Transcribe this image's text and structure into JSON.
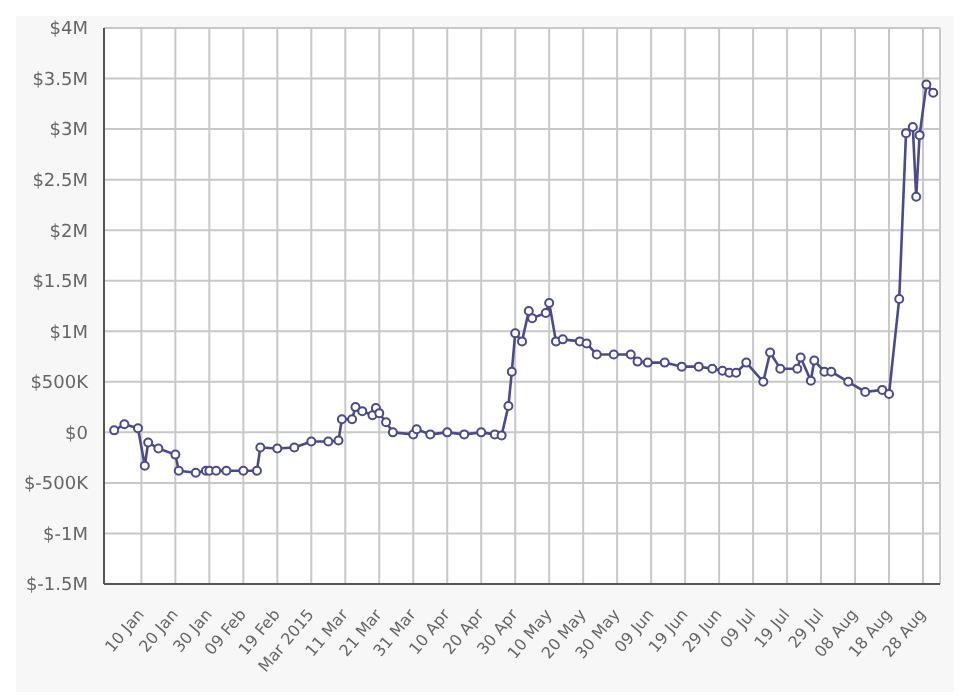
{
  "chart_data": {
    "type": "line",
    "x": [
      "2015-01-02",
      "2015-01-05",
      "2015-01-09",
      "2015-01-11",
      "2015-01-12",
      "2015-01-15",
      "2015-01-20",
      "2015-01-21",
      "2015-01-26",
      "2015-01-29",
      "2015-01-30",
      "2015-02-01",
      "2015-02-04",
      "2015-02-09",
      "2015-02-13",
      "2015-02-14",
      "2015-02-19",
      "2015-02-24",
      "2015-03-01",
      "2015-03-06",
      "2015-03-09",
      "2015-03-10",
      "2015-03-13",
      "2015-03-14",
      "2015-03-16",
      "2015-03-19",
      "2015-03-20",
      "2015-03-21",
      "2015-03-23",
      "2015-03-25",
      "2015-03-31",
      "2015-04-01",
      "2015-04-05",
      "2015-04-10",
      "2015-04-15",
      "2015-04-20",
      "2015-04-24",
      "2015-04-26",
      "2015-04-28",
      "2015-04-29",
      "2015-04-30",
      "2015-05-02",
      "2015-05-04",
      "2015-05-05",
      "2015-05-09",
      "2015-05-10",
      "2015-05-12",
      "2015-05-14",
      "2015-05-19",
      "2015-05-21",
      "2015-05-24",
      "2015-05-29",
      "2015-06-03",
      "2015-06-05",
      "2015-06-08",
      "2015-06-13",
      "2015-06-18",
      "2015-06-23",
      "2015-06-27",
      "2015-06-30",
      "2015-07-02",
      "2015-07-04",
      "2015-07-07",
      "2015-07-12",
      "2015-07-14",
      "2015-07-17",
      "2015-07-22",
      "2015-07-23",
      "2015-07-26",
      "2015-07-27",
      "2015-07-30",
      "2015-08-01",
      "2015-08-06",
      "2015-08-11",
      "2015-08-16",
      "2015-08-18",
      "2015-08-21",
      "2015-08-23",
      "2015-08-25",
      "2015-08-26",
      "2015-08-27",
      "2015-08-29",
      "2015-08-31"
    ],
    "series": [
      {
        "color": "#4a4a8c",
        "values": [
          20000,
          80000,
          40000,
          -330000,
          -100000,
          -160000,
          -220000,
          -380000,
          -400000,
          -380000,
          -380000,
          -380000,
          -380000,
          -380000,
          -380000,
          -150000,
          -160000,
          -150000,
          -90000,
          -90000,
          -80000,
          130000,
          130000,
          250000,
          210000,
          170000,
          240000,
          190000,
          100000,
          0,
          -20000,
          30000,
          -20000,
          0,
          -20000,
          0,
          -20000,
          -30000,
          260000,
          600000,
          980000,
          900000,
          1200000,
          1130000,
          1180000,
          1280000,
          900000,
          920000,
          900000,
          880000,
          770000,
          770000,
          770000,
          700000,
          690000,
          690000,
          650000,
          650000,
          630000,
          610000,
          590000,
          590000,
          690000,
          500000,
          790000,
          630000,
          630000,
          740000,
          510000,
          710000,
          600000,
          600000,
          500000,
          400000,
          420000,
          380000,
          1320000,
          2960000,
          3020000,
          2330000,
          2940000,
          3440000,
          3360000
        ]
      }
    ],
    "xlim": [
      "2014-12-30",
      "2015-09-02"
    ],
    "xticks": [
      {
        "value": "2015-01-10",
        "label": "10 Jan"
      },
      {
        "value": "2015-01-20",
        "label": "20 Jan"
      },
      {
        "value": "2015-01-30",
        "label": "30 Jan"
      },
      {
        "value": "2015-02-09",
        "label": "09 Feb"
      },
      {
        "value": "2015-02-19",
        "label": "19 Feb"
      },
      {
        "value": "2015-03-01",
        "label": "Mar 2015"
      },
      {
        "value": "2015-03-11",
        "label": "11 Mar"
      },
      {
        "value": "2015-03-21",
        "label": "21 Mar"
      },
      {
        "value": "2015-03-31",
        "label": "31 Mar"
      },
      {
        "value": "2015-04-10",
        "label": "10 Apr"
      },
      {
        "value": "2015-04-20",
        "label": "20 Apr"
      },
      {
        "value": "2015-04-30",
        "label": "30 Apr"
      },
      {
        "value": "2015-05-10",
        "label": "10 May"
      },
      {
        "value": "2015-05-20",
        "label": "20 May"
      },
      {
        "value": "2015-05-30",
        "label": "30 May"
      },
      {
        "value": "2015-06-09",
        "label": "09 Jun"
      },
      {
        "value": "2015-06-19",
        "label": "19 Jun"
      },
      {
        "value": "2015-06-29",
        "label": "29 Jun"
      },
      {
        "value": "2015-07-09",
        "label": "09 Jul"
      },
      {
        "value": "2015-07-19",
        "label": "19 Jul"
      },
      {
        "value": "2015-07-29",
        "label": "29 Jul"
      },
      {
        "value": "2015-08-08",
        "label": "08 Aug"
      },
      {
        "value": "2015-08-18",
        "label": "18 Aug"
      },
      {
        "value": "2015-08-28",
        "label": "28 Aug"
      }
    ],
    "ylim": [
      -1500000,
      4000000
    ],
    "yticks": [
      {
        "value": -1500000,
        "label": "$-1.5M"
      },
      {
        "value": -1000000,
        "label": "$-1M"
      },
      {
        "value": -500000,
        "label": "$-500K"
      },
      {
        "value": 0,
        "label": "$0"
      },
      {
        "value": 500000,
        "label": "$500K"
      },
      {
        "value": 1000000,
        "label": "$1M"
      },
      {
        "value": 1500000,
        "label": "$1.5M"
      },
      {
        "value": 2000000,
        "label": "$2M"
      },
      {
        "value": 2500000,
        "label": "$2.5M"
      },
      {
        "value": 3000000,
        "label": "$3M"
      },
      {
        "value": 3500000,
        "label": "$3.5M"
      },
      {
        "value": 4000000,
        "label": "$4M"
      }
    ],
    "grid": true,
    "marker": "circle"
  }
}
